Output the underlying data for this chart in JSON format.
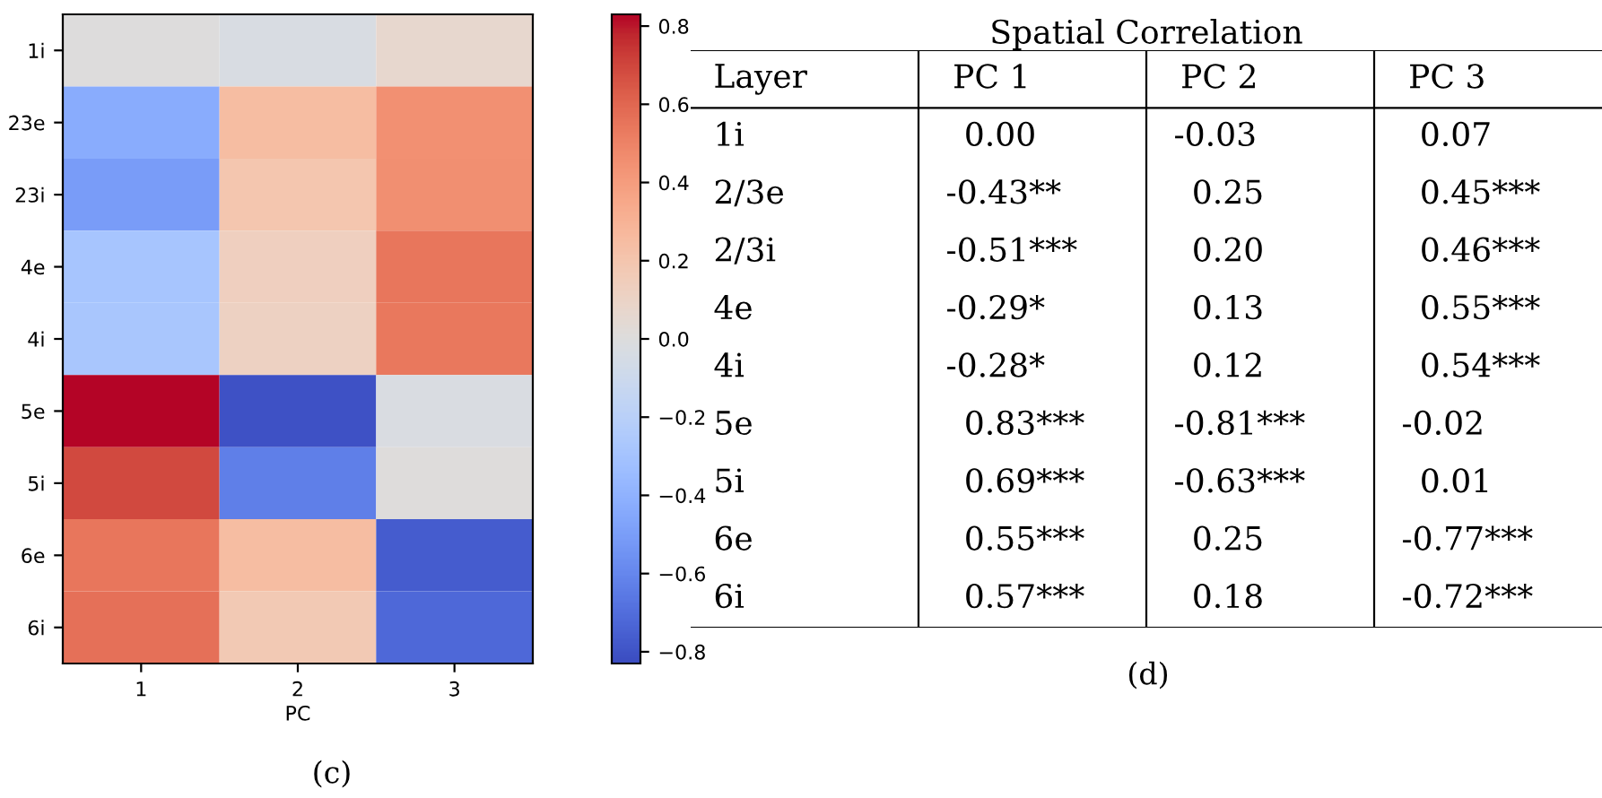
{
  "chart_data": [
    {
      "type": "heatmap",
      "xlabel": "PC",
      "categories": [
        "1",
        "2",
        "3"
      ],
      "y_categories": [
        "1i",
        "23e",
        "23i",
        "4e",
        "4i",
        "5e",
        "5i",
        "6e",
        "6i"
      ],
      "cells": [
        [
          0.0,
          -0.03,
          0.07
        ],
        [
          -0.43,
          0.25,
          0.45
        ],
        [
          -0.51,
          0.2,
          0.46
        ],
        [
          -0.29,
          0.13,
          0.55
        ],
        [
          -0.28,
          0.12,
          0.54
        ],
        [
          0.83,
          -0.81,
          -0.02
        ],
        [
          0.69,
          -0.63,
          0.01
        ],
        [
          0.55,
          0.25,
          -0.77
        ],
        [
          0.57,
          0.18,
          -0.72
        ]
      ],
      "clim": [
        -0.83,
        0.83
      ],
      "cticks": [
        {
          "value": -0.8,
          "label": "−0.8"
        },
        {
          "value": -0.6,
          "label": "−0.6"
        },
        {
          "value": -0.4,
          "label": "−0.4"
        },
        {
          "value": -0.2,
          "label": "−0.2"
        },
        {
          "value": 0,
          "label": "0.0"
        },
        0.2,
        0.4,
        0.6,
        0.8
      ],
      "annotations": [
        "(c)"
      ]
    },
    {
      "type": "heatmap",
      "title": "Spatial Correlation",
      "ylabel": "Layer",
      "categories": [
        "PC 1",
        "PC 2",
        "PC 3"
      ],
      "y_categories": [
        "1i",
        "2/3e",
        "2/3i",
        "4e",
        "4i",
        "5e",
        "5i",
        "6e",
        "6i"
      ],
      "cells": [
        [
          0.0,
          -0.03,
          0.07
        ],
        [
          -0.43,
          0.25,
          0.45
        ],
        [
          -0.51,
          0.2,
          0.46
        ],
        [
          -0.29,
          0.13,
          0.55
        ],
        [
          -0.28,
          0.12,
          0.54
        ],
        [
          0.83,
          -0.81,
          -0.02
        ],
        [
          0.69,
          -0.63,
          0.01
        ],
        [
          0.55,
          0.25,
          -0.77
        ],
        [
          0.57,
          0.18,
          -0.72
        ]
      ],
      "cell_labels": [
        [
          "0.00",
          "-0.03",
          "0.07"
        ],
        [
          "-0.43**",
          "0.25",
          "0.45***"
        ],
        [
          "-0.51***",
          "0.20",
          "0.46***"
        ],
        [
          "-0.29*",
          "0.13",
          "0.55***"
        ],
        [
          "-0.28*",
          "0.12",
          "0.54***"
        ],
        [
          "0.83***",
          "-0.81***",
          "-0.02"
        ],
        [
          "0.69***",
          "-0.63***",
          "0.01"
        ],
        [
          "0.55***",
          "0.25",
          "-0.77***"
        ],
        [
          "0.57***",
          "0.18",
          "-0.72***"
        ]
      ],
      "annotations": [
        "(d)"
      ]
    }
  ]
}
